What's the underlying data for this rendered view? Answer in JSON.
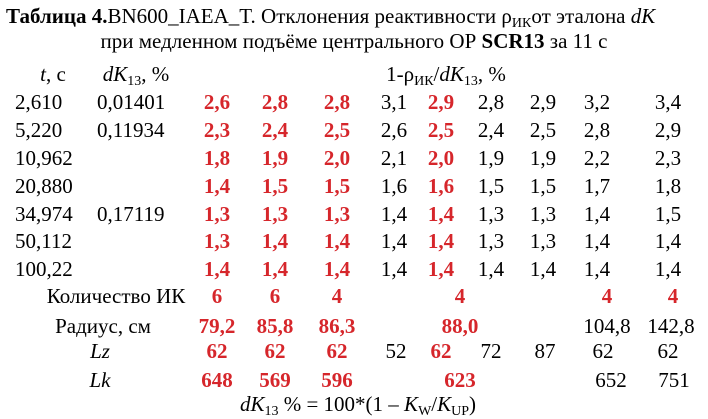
{
  "title": {
    "table_label": "Таблица 4.",
    "name": "BN600_IAEA_T",
    "desc_pre": ". Отклонения реактивности ρ",
    "desc_sub": "ИК",
    "desc_post": "от эталона ",
    "dk": "dK",
    "line2_pre": "при медленном подъёме центрального ОР ",
    "rod": "SCR13",
    "line2_post": " за 11 с"
  },
  "headers": {
    "t": "t",
    "t_unit": ", с",
    "dk": "dK",
    "dk_sub": "13",
    "dk_unit": ", %",
    "rho_pre": "1-ρ",
    "rho_sub1": "ИК",
    "rho_mid": "/",
    "rho_dk": "dK",
    "rho_sub2": "13",
    "rho_unit": ", %"
  },
  "colors": {
    "highlight": "#d6262b",
    "text": "#000000"
  },
  "rows": [
    {
      "t": "2,610",
      "dk": "0,01401",
      "v": [
        "2,6",
        "2,8",
        "2,8",
        "3,1",
        "2,9",
        "2,8",
        "2,9",
        "3,2",
        "3,4"
      ]
    },
    {
      "t": "5,220",
      "dk": "0,11934",
      "v": [
        "2,3",
        "2,4",
        "2,5",
        "2,6",
        "2,5",
        "2,4",
        "2,5",
        "2,8",
        "2,9"
      ]
    },
    {
      "t": "10,962",
      "dk": "",
      "v": [
        "1,8",
        "1,9",
        "2,0",
        "2,1",
        "2,0",
        "1,9",
        "1,9",
        "2,2",
        "2,3"
      ]
    },
    {
      "t": "20,880",
      "dk": "",
      "v": [
        "1,4",
        "1,5",
        "1,5",
        "1,6",
        "1,6",
        "1,5",
        "1,5",
        "1,7",
        "1,8"
      ]
    },
    {
      "t": "34,974",
      "dk": "0,17119",
      "v": [
        "1,3",
        "1,3",
        "1,3",
        "1,4",
        "1,4",
        "1,3",
        "1,3",
        "1,4",
        "1,5"
      ]
    },
    {
      "t": "50,112",
      "dk": "",
      "v": [
        "1,3",
        "1,4",
        "1,4",
        "1,4",
        "1,4",
        "1,3",
        "1,3",
        "1,4",
        "1,4"
      ]
    },
    {
      "t": "100,22",
      "dk": "",
      "v": [
        "1,4",
        "1,4",
        "1,4",
        "1,4",
        "1,4",
        "1,4",
        "1,4",
        "1,4",
        "1,4"
      ]
    }
  ],
  "count": {
    "label": "Количество ИК",
    "values": [
      "6",
      "6",
      "4",
      "4",
      "4",
      "4"
    ]
  },
  "radius": {
    "label": "Радиус, см",
    "values": [
      "79,2",
      "85,8",
      "86,3",
      "88,0",
      "104,8",
      "142,8"
    ]
  },
  "lz": {
    "label": "Lz",
    "values": [
      "62",
      "62",
      "62",
      "52",
      "62",
      "72",
      "87",
      "62",
      "62"
    ]
  },
  "lk": {
    "label": "Lk",
    "values": [
      "648",
      "569",
      "596",
      "623",
      "652",
      "751"
    ]
  },
  "formula": {
    "dk": "dK",
    "sub": "13",
    "mid": " % = 100*(1 – ",
    "kw": "K",
    "kw_sub": "W",
    "slash": "/",
    "kup": "K",
    "kup_sub": "UP",
    "end": ")"
  }
}
